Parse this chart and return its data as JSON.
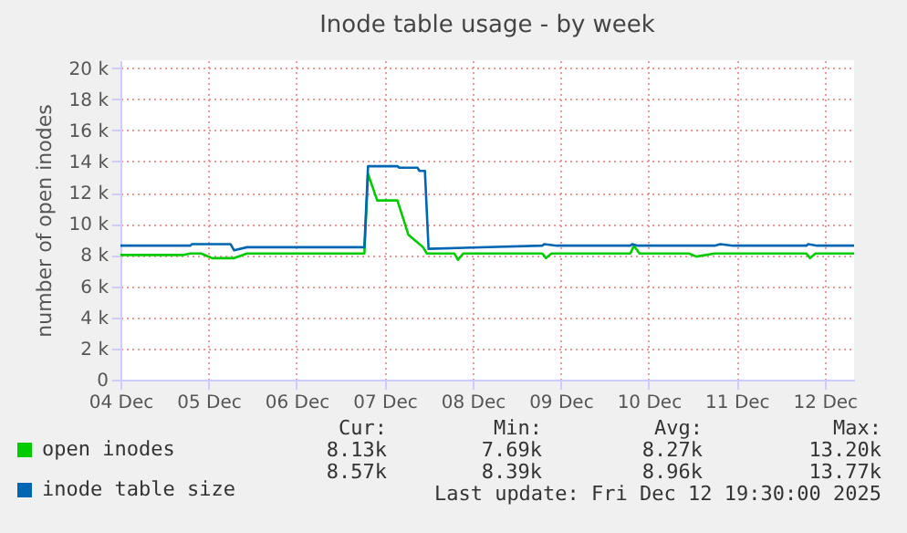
{
  "chart_data": {
    "type": "line",
    "title": "Inode table usage - by week",
    "ylabel": "number of open inodes",
    "xlim": [
      "2025-12-04T00:00",
      "2025-12-12T08:00"
    ],
    "xticks": [
      {
        "value": "2025-12-04",
        "label": "04 Dec"
      },
      {
        "value": "2025-12-05",
        "label": "05 Dec"
      },
      {
        "value": "2025-12-06",
        "label": "06 Dec"
      },
      {
        "value": "2025-12-07",
        "label": "07 Dec"
      },
      {
        "value": "2025-12-08",
        "label": "08 Dec"
      },
      {
        "value": "2025-12-09",
        "label": "09 Dec"
      },
      {
        "value": "2025-12-10",
        "label": "10 Dec"
      },
      {
        "value": "2025-12-11",
        "label": "11 Dec"
      },
      {
        "value": "2025-12-12",
        "label": "12 Dec"
      }
    ],
    "ylim": [
      0,
      20500
    ],
    "yticks": [
      0,
      {
        "value": 2000,
        "label": "2 k"
      },
      {
        "value": 4000,
        "label": "4 k"
      },
      {
        "value": 6000,
        "label": "6 k"
      },
      {
        "value": 8000,
        "label": "8 k"
      },
      {
        "value": 10000,
        "label": "10 k"
      },
      {
        "value": 12000,
        "label": "12 k"
      },
      {
        "value": 14000,
        "label": "14 k"
      },
      {
        "value": 16000,
        "label": "16 k"
      },
      {
        "value": 18000,
        "label": "18 k"
      },
      {
        "value": 20000,
        "label": "20 k"
      }
    ],
    "grid": true,
    "legend": "bottom left",
    "line_style": "solid",
    "marker": "none",
    "series": [
      {
        "name": "open inodes",
        "color": "#00cc00",
        "x": [
          "2025-12-04T00:00",
          "2025-12-04T17:00",
          "2025-12-04T19:00",
          "2025-12-04T22:00",
          "2025-12-05T01:00",
          "2025-12-05T07:00",
          "2025-12-05T10:30",
          "2025-12-06T18:30",
          "2025-12-06T19:30",
          "2025-12-06T22:00",
          "2025-12-07T03:30",
          "2025-12-07T05:00",
          "2025-12-07T06:30",
          "2025-12-07T09:00",
          "2025-12-07T10:30",
          "2025-12-07T11:30",
          "2025-12-07T19:00",
          "2025-12-07T20:00",
          "2025-12-07T21:30",
          "2025-12-08T19:00",
          "2025-12-08T20:00",
          "2025-12-08T21:30",
          "2025-12-09T19:00",
          "2025-12-09T20:00",
          "2025-12-09T21:30",
          "2025-12-10T11:00",
          "2025-12-10T13:00",
          "2025-12-10T18:00",
          "2025-12-11T19:00",
          "2025-12-11T20:00",
          "2025-12-11T21:30",
          "2025-12-12T08:00"
        ],
        "values": [
          8000,
          8000,
          8100,
          8100,
          7800,
          7800,
          8100,
          8100,
          13200,
          11500,
          11500,
          10400,
          9300,
          8800,
          8500,
          8100,
          8100,
          7700,
          8100,
          8100,
          7800,
          8100,
          8100,
          8600,
          8100,
          8100,
          7900,
          8100,
          8100,
          7800,
          8100,
          8100
        ]
      },
      {
        "name": "inode table size",
        "color": "#0066b3",
        "x": [
          "2025-12-04T00:00",
          "2025-12-04T19:00",
          "2025-12-04T19:30",
          "2025-12-05T06:00",
          "2025-12-05T07:00",
          "2025-12-05T10:30",
          "2025-12-06T18:30",
          "2025-12-06T19:30",
          "2025-12-07T03:30",
          "2025-12-07T04:00",
          "2025-12-07T09:00",
          "2025-12-07T09:30",
          "2025-12-07T11:00",
          "2025-12-07T12:00",
          "2025-12-08T19:00",
          "2025-12-08T19:30",
          "2025-12-08T23:00",
          "2025-12-09T19:00",
          "2025-12-09T19:30",
          "2025-12-09T21:00",
          "2025-12-10T18:00",
          "2025-12-10T19:30",
          "2025-12-10T23:00",
          "2025-12-11T19:00",
          "2025-12-11T19:30",
          "2025-12-11T22:00",
          "2025-12-12T08:00"
        ],
        "values": [
          8600,
          8600,
          8700,
          8700,
          8300,
          8500,
          8500,
          13700,
          13700,
          13600,
          13600,
          13400,
          13400,
          8400,
          8600,
          8700,
          8600,
          8600,
          8700,
          8600,
          8600,
          8700,
          8600,
          8600,
          8700,
          8600,
          8600
        ]
      }
    ],
    "annotations": [
      "Cur:",
      "Min:",
      "Avg:",
      "Max:",
      "8.13k",
      "7.69k",
      "8.27k",
      "13.20k",
      "8.57k",
      "8.39k",
      "8.96k",
      "13.77k",
      "Last update: Fri Dec 12 19:30:00 2025"
    ]
  }
}
